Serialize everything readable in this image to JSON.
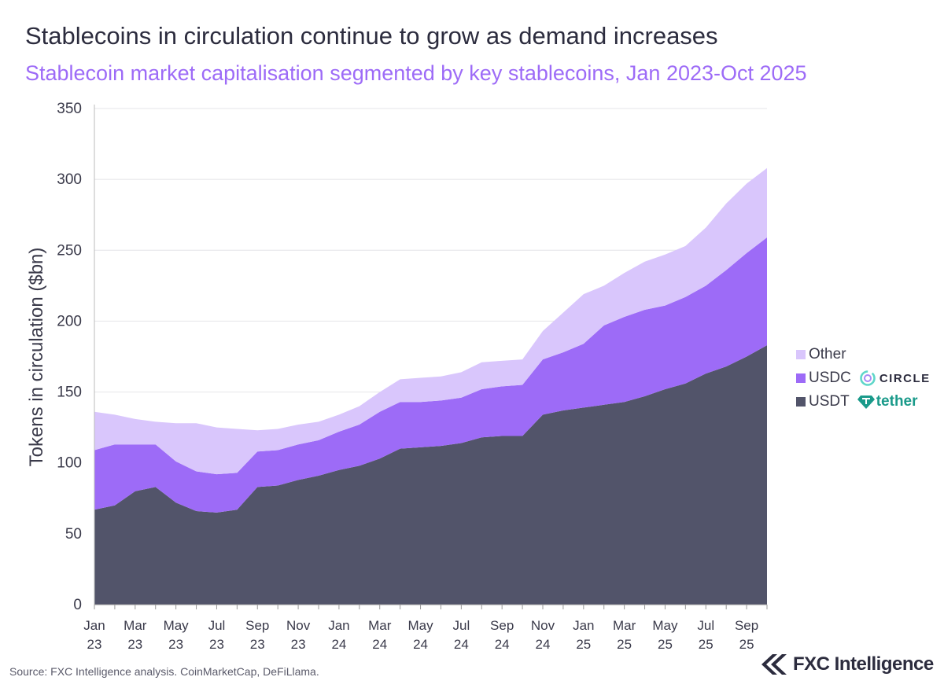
{
  "title": "Stablecoins in circulation continue to grow as demand increases",
  "subtitle": "Stablecoin market capitalisation segmented by key stablecoins, Jan 2023-Oct 2025",
  "source": "Source: FXC Intelligence analysis. CoinMarketCap, DeFiLlama.",
  "brand": "FXC Intelligence",
  "colors": {
    "USDT": "#52546a",
    "USDC": "#9d6bf7",
    "Other": "#d9c6fc"
  },
  "legend_logos": {
    "USDC": "CIRCLE",
    "USDT": "tether"
  },
  "chart_data": {
    "type": "area",
    "stacked": true,
    "title": "Stablecoins in circulation continue to grow as demand increases",
    "subtitle": "Stablecoin market capitalisation segmented by key stablecoins, Jan 2023-Oct 2025",
    "xlabel": "",
    "ylabel": "Tokens in circulation ($bn)",
    "ylim": [
      0,
      350
    ],
    "yticks": [
      0,
      50,
      100,
      150,
      200,
      250,
      300,
      350
    ],
    "grid": true,
    "legend": "right",
    "x": [
      "Jan 23",
      "Feb 23",
      "Mar 23",
      "Apr 23",
      "May 23",
      "Jun 23",
      "Jul 23",
      "Aug 23",
      "Sep 23",
      "Oct 23",
      "Nov 23",
      "Dec 23",
      "Jan 24",
      "Feb 24",
      "Mar 24",
      "Apr 24",
      "May 24",
      "Jun 24",
      "Jul 24",
      "Aug 24",
      "Sep 24",
      "Oct 24",
      "Nov 24",
      "Dec 24",
      "Jan 25",
      "Feb 25",
      "Mar 25",
      "Apr 25",
      "May 25",
      "Jun 25",
      "Jul 25",
      "Aug 25",
      "Sep 25",
      "Oct 25"
    ],
    "xticks": [
      [
        "Jan",
        "23"
      ],
      [
        "Mar",
        "23"
      ],
      [
        "May",
        "23"
      ],
      [
        "Jul",
        "23"
      ],
      [
        "Sep",
        "23"
      ],
      [
        "Nov",
        "23"
      ],
      [
        "Jan",
        "24"
      ],
      [
        "Mar",
        "24"
      ],
      [
        "May",
        "24"
      ],
      [
        "Jul",
        "24"
      ],
      [
        "Sep",
        "24"
      ],
      [
        "Nov",
        "24"
      ],
      [
        "Jan",
        "25"
      ],
      [
        "Mar",
        "25"
      ],
      [
        "May",
        "25"
      ],
      [
        "Jul",
        "25"
      ],
      [
        "Sep",
        "25"
      ]
    ],
    "series": [
      {
        "name": "USDT",
        "values": [
          67,
          70,
          80,
          83,
          72,
          66,
          65,
          67,
          83,
          84,
          88,
          91,
          95,
          98,
          103,
          110,
          111,
          112,
          114,
          118,
          119,
          119,
          134,
          137,
          139,
          141,
          143,
          147,
          152,
          156,
          163,
          168,
          175,
          183
        ]
      },
      {
        "name": "USDC",
        "values": [
          42,
          43,
          33,
          30,
          29,
          28,
          27,
          26,
          25,
          25,
          25,
          25,
          27,
          29,
          33,
          33,
          32,
          32,
          32,
          34,
          35,
          36,
          39,
          41,
          45,
          56,
          60,
          61,
          59,
          61,
          62,
          68,
          73,
          76
        ]
      },
      {
        "name": "Other",
        "values": [
          27,
          21,
          18,
          16,
          27,
          34,
          33,
          31,
          15,
          15,
          14,
          13,
          12,
          13,
          14,
          16,
          17,
          17,
          18,
          19,
          18,
          18,
          20,
          28,
          35,
          28,
          31,
          34,
          36,
          36,
          41,
          47,
          49,
          49
        ]
      }
    ]
  }
}
